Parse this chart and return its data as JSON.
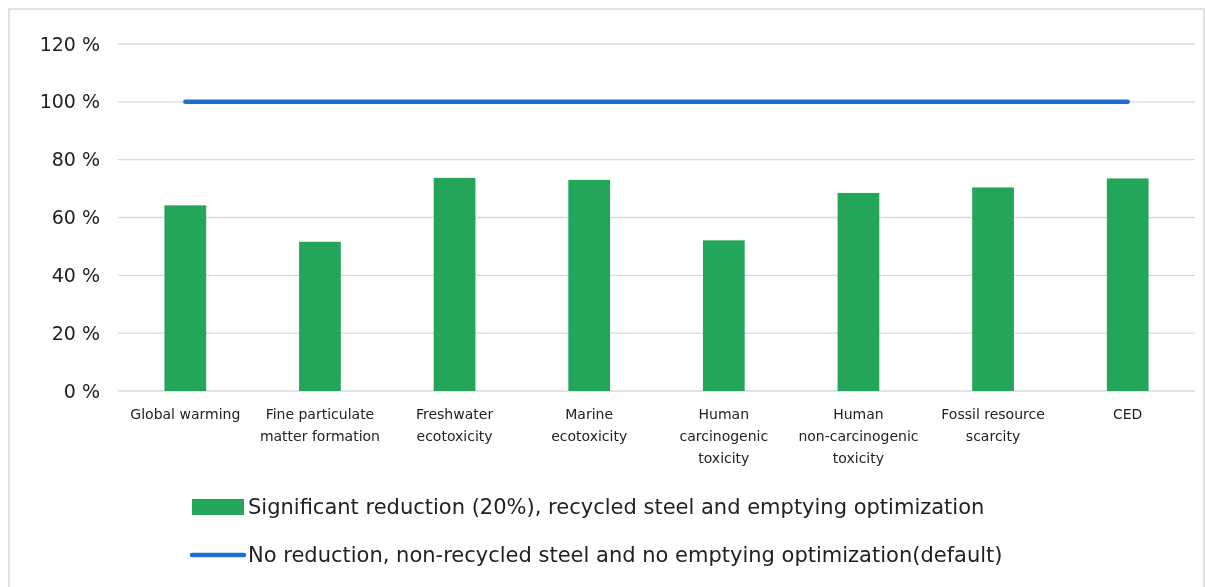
{
  "chart_data": {
    "type": "bar",
    "categories": [
      "Global warming",
      "Fine particulate matter formation",
      "Freshwater ecotoxicity",
      "Marine ecotoxicity",
      "Human carcinogenic toxicity",
      "Human non-carcinogenic toxicity",
      "Fossil resource scarcity",
      "CED"
    ],
    "series": [
      {
        "name": "Significant reduction (20%), recycled steel and emptying optimization",
        "color": "#23a55a",
        "values": [
          64.2,
          51.6,
          73.7,
          73.0,
          52.1,
          68.5,
          70.4,
          73.5
        ]
      },
      {
        "name": "No reduction, non-recycled steel and no emptying optimization(default)",
        "type": "line",
        "color": "#1f6fd1",
        "values": [
          100,
          100,
          100,
          100,
          100,
          100,
          100,
          100
        ]
      }
    ],
    "ylim": [
      0,
      120
    ],
    "yticks": [
      {
        "value": 0,
        "label": "0 %"
      },
      {
        "value": 20,
        "label": "20 %"
      },
      {
        "value": 40,
        "label": "40 %"
      },
      {
        "value": 60,
        "label": "60 %"
      },
      {
        "value": 80,
        "label": "80 %"
      },
      {
        "value": 100,
        "label": "100 %"
      },
      {
        "value": 120,
        "label": "120 %"
      }
    ],
    "grid": true,
    "legend": "bottom"
  }
}
